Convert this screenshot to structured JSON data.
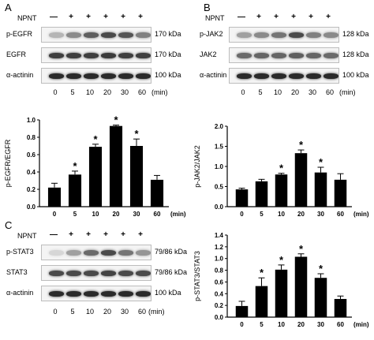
{
  "panels": [
    {
      "letter": "A",
      "condition_label": "NPNT",
      "signs": [
        "—",
        "+",
        "+",
        "+",
        "+",
        "+"
      ],
      "blot_rows": [
        {
          "label": "p-EGFR",
          "size": "170 kDa",
          "intensity": [
            0.25,
            0.45,
            0.65,
            0.75,
            0.7,
            0.5
          ]
        },
        {
          "label": "EGFR",
          "size": "170 kDa",
          "intensity": [
            0.8,
            0.8,
            0.8,
            0.82,
            0.8,
            0.8
          ]
        },
        {
          "label": "α-actinin",
          "size": "100  kDa",
          "intensity": [
            0.9,
            0.9,
            0.9,
            0.9,
            0.9,
            0.9
          ]
        }
      ],
      "time_points": [
        "0",
        "5",
        "10",
        "20",
        "30",
        "60"
      ],
      "time_unit": "(min)"
    },
    {
      "letter": "B",
      "condition_label": "NPNT",
      "signs": [
        "—",
        "+",
        "+",
        "+",
        "+",
        "+"
      ],
      "blot_rows": [
        {
          "label": "p-JAK2",
          "size": "128 kDa",
          "intensity": [
            0.35,
            0.45,
            0.55,
            0.75,
            0.5,
            0.45
          ]
        },
        {
          "label": "JAK2",
          "size": "128 kDa",
          "intensity": [
            0.6,
            0.62,
            0.62,
            0.65,
            0.62,
            0.6
          ]
        },
        {
          "label": "α-actinin",
          "size": "100 kDa",
          "intensity": [
            0.9,
            0.9,
            0.9,
            0.9,
            0.9,
            0.9
          ]
        }
      ],
      "time_points": [
        "0",
        "5",
        "10",
        "20",
        "30",
        "60"
      ],
      "time_unit": "(min)"
    },
    {
      "letter": "C",
      "condition_label": "NPNT",
      "signs": [
        "—",
        "+",
        "+",
        "+",
        "+",
        "+"
      ],
      "blot_rows": [
        {
          "label": "p-STAT3",
          "size": "79/86 kDa",
          "intensity": [
            0.1,
            0.35,
            0.6,
            0.75,
            0.55,
            0.4
          ]
        },
        {
          "label": "STAT3",
          "size": "79/86 kDa",
          "intensity": [
            0.75,
            0.75,
            0.75,
            0.78,
            0.75,
            0.75
          ]
        },
        {
          "label": "α-actinin",
          "size": "100 kDa",
          "intensity": [
            0.9,
            0.9,
            0.9,
            0.9,
            0.9,
            0.9
          ]
        }
      ],
      "time_points": [
        "0",
        "5",
        "10",
        "20",
        "30",
        "60"
      ],
      "time_unit": "(min)"
    }
  ],
  "chart_data": [
    {
      "type": "bar",
      "ylabel": "p-EGFR/EGFR",
      "categories": [
        "0",
        "5",
        "10",
        "20",
        "30",
        "60"
      ],
      "x_unit": "(min)",
      "values": [
        0.22,
        0.37,
        0.69,
        0.93,
        0.7,
        0.31
      ],
      "errors": [
        0.05,
        0.04,
        0.03,
        0.01,
        0.08,
        0.05
      ],
      "significance": [
        "",
        "*",
        "*",
        "*",
        "*",
        ""
      ],
      "ylim": [
        0.0,
        1.0
      ],
      "yticks": [
        "0.0",
        "0.2",
        "0.4",
        "0.6",
        "0.8",
        "1.0"
      ],
      "bar_color": "#000000"
    },
    {
      "type": "bar",
      "ylabel": "p-JAK2/JAK2",
      "categories": [
        "0",
        "5",
        "10",
        "20",
        "30",
        "60"
      ],
      "x_unit": "(min)",
      "values": [
        0.43,
        0.63,
        0.8,
        1.33,
        0.85,
        0.67
      ],
      "errors": [
        0.03,
        0.05,
        0.03,
        0.08,
        0.13,
        0.15
      ],
      "significance": [
        "",
        "",
        "*",
        "*",
        "*",
        ""
      ],
      "ylim": [
        0.0,
        2.0
      ],
      "yticks": [
        "0.0",
        "0.5",
        "1.0",
        "1.5",
        "2.0"
      ],
      "bar_color": "#000000"
    },
    {
      "type": "bar",
      "ylabel": "p-STAT3/STAT3",
      "categories": [
        "0",
        "5",
        "10",
        "20",
        "30",
        "60"
      ],
      "x_unit": "(min)",
      "values": [
        0.19,
        0.53,
        0.81,
        1.03,
        0.67,
        0.31
      ],
      "errors": [
        0.08,
        0.14,
        0.08,
        0.05,
        0.07,
        0.05
      ],
      "significance": [
        "",
        "*",
        "*",
        "*",
        "*",
        ""
      ],
      "ylim": [
        0.0,
        1.4
      ],
      "yticks": [
        "0.0",
        "0.2",
        "0.4",
        "0.6",
        "0.8",
        "1.0",
        "1.2",
        "1.4"
      ],
      "bar_color": "#000000"
    }
  ]
}
